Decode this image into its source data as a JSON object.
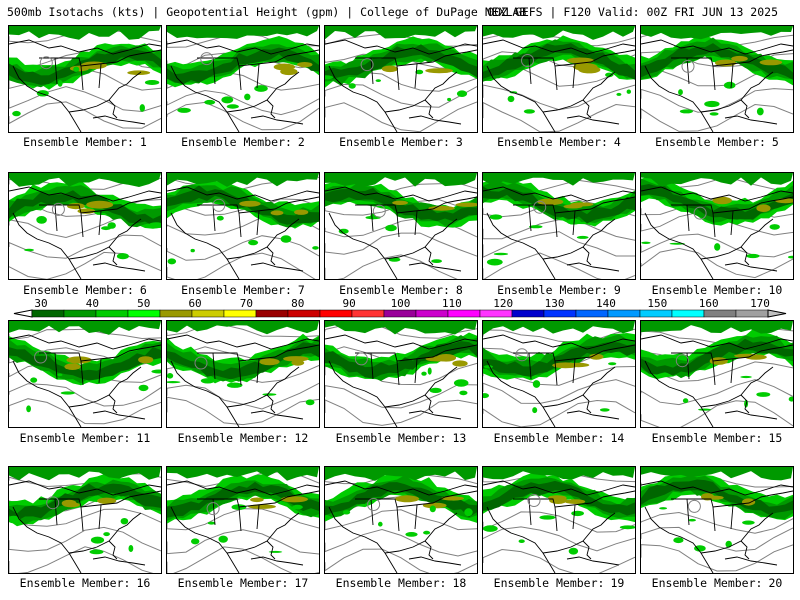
{
  "header": {
    "left": "500mb Isotachs (kts) | Geopotential Height (gpm) | College of DuPage NEXLAB",
    "right": "00Z GEFS | F120 Valid: 00Z FRI JUN 13 2025"
  },
  "member_label_prefix": "Ensemble Member:",
  "members": [
    "1",
    "2",
    "3",
    "4",
    "5",
    "6",
    "7",
    "8",
    "9",
    "10",
    "11",
    "12",
    "13",
    "14",
    "15",
    "16",
    "17",
    "18",
    "19",
    "20"
  ],
  "colorbar": {
    "ticks": [
      "30",
      "40",
      "50",
      "60",
      "70",
      "80",
      "90",
      "100",
      "110",
      "120",
      "130",
      "140",
      "150",
      "160",
      "170"
    ],
    "colors": [
      "#006600",
      "#009900",
      "#00cc00",
      "#00ff00",
      "#999900",
      "#cccc00",
      "#ffff00",
      "#990000",
      "#cc0000",
      "#ff0000",
      "#ff3333",
      "#990099",
      "#cc00cc",
      "#ff00ff",
      "#ff33ff",
      "#0000cc",
      "#0033ff",
      "#0066ff",
      "#0099ff",
      "#00ccff",
      "#00ffff",
      "#808080",
      "#a0a0a0"
    ]
  },
  "map_colors": {
    "land_outline": "#000000",
    "height_contour": "#808080",
    "wind_light": "#00cc00",
    "wind_mid": "#009900",
    "wind_dark": "#006600",
    "wind_strong": "#999900"
  }
}
